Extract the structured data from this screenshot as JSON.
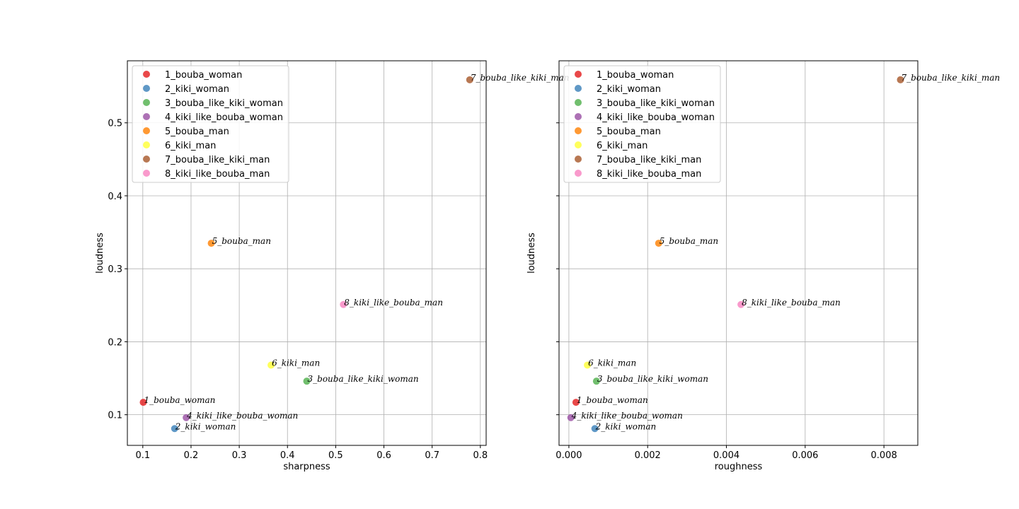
{
  "chart_data": [
    {
      "type": "scatter",
      "xlabel": "sharpness",
      "ylabel": "loudness",
      "xlim": [
        0.068,
        0.812
      ],
      "ylim": [
        0.058,
        0.585
      ],
      "xticks": [
        0.1,
        0.2,
        0.3,
        0.4,
        0.5,
        0.6,
        0.7,
        0.8
      ],
      "xtick_labels": [
        "0.1",
        "0.2",
        "0.3",
        "0.4",
        "0.5",
        "0.6",
        "0.7",
        "0.8"
      ],
      "yticks": [
        0.1,
        0.2,
        0.3,
        0.4,
        0.5
      ],
      "ytick_labels": [
        "0.1",
        "0.2",
        "0.3",
        "0.4",
        "0.5"
      ],
      "show_ytick_labels": true,
      "grid": true,
      "legend_position": "upper-left",
      "points": [
        {
          "label": "1_bouba_woman",
          "x": 0.101,
          "y": 0.117,
          "color": "#e41a1c"
        },
        {
          "label": "2_kiki_woman",
          "x": 0.166,
          "y": 0.081,
          "color": "#377eb8"
        },
        {
          "label": "3_bouba_like_kiki_woman",
          "x": 0.44,
          "y": 0.146,
          "color": "#4daf4a"
        },
        {
          "label": "4_kiki_like_bouba_woman",
          "x": 0.19,
          "y": 0.096,
          "color": "#984ea3"
        },
        {
          "label": "5_bouba_man",
          "x": 0.242,
          "y": 0.335,
          "color": "#ff7f00"
        },
        {
          "label": "6_kiki_man",
          "x": 0.366,
          "y": 0.168,
          "color": "#ffff33"
        },
        {
          "label": "7_bouba_like_kiki_man",
          "x": 0.778,
          "y": 0.559,
          "color": "#a65628"
        },
        {
          "label": "8_kiki_like_bouba_man",
          "x": 0.516,
          "y": 0.251,
          "color": "#f781bf"
        }
      ]
    },
    {
      "type": "scatter",
      "xlabel": "roughness",
      "ylabel": "loudness",
      "xlim": [
        -0.00025,
        0.00886
      ],
      "ylim": [
        0.058,
        0.585
      ],
      "xticks": [
        0.0,
        0.002,
        0.004,
        0.006,
        0.008
      ],
      "xtick_labels": [
        "0.000",
        "0.002",
        "0.004",
        "0.006",
        "0.008"
      ],
      "yticks": [
        0.1,
        0.2,
        0.3,
        0.4,
        0.5
      ],
      "ytick_labels": [
        "0.1",
        "0.2",
        "0.3",
        "0.4",
        "0.5"
      ],
      "show_ytick_labels": false,
      "grid": true,
      "legend_position": "upper-left",
      "points": [
        {
          "label": "1_bouba_woman",
          "x": 0.00018,
          "y": 0.117,
          "color": "#e41a1c"
        },
        {
          "label": "2_kiki_woman",
          "x": 0.00066,
          "y": 0.081,
          "color": "#377eb8"
        },
        {
          "label": "3_bouba_like_kiki_woman",
          "x": 0.0007,
          "y": 0.146,
          "color": "#4daf4a"
        },
        {
          "label": "4_kiki_like_bouba_woman",
          "x": 5e-05,
          "y": 0.096,
          "color": "#984ea3"
        },
        {
          "label": "5_bouba_man",
          "x": 0.00228,
          "y": 0.335,
          "color": "#ff7f00"
        },
        {
          "label": "6_kiki_man",
          "x": 0.00047,
          "y": 0.168,
          "color": "#ffff33"
        },
        {
          "label": "7_bouba_like_kiki_man",
          "x": 0.00842,
          "y": 0.559,
          "color": "#a65628"
        },
        {
          "label": "8_kiki_like_bouba_man",
          "x": 0.00437,
          "y": 0.251,
          "color": "#f781bf"
        }
      ]
    }
  ]
}
